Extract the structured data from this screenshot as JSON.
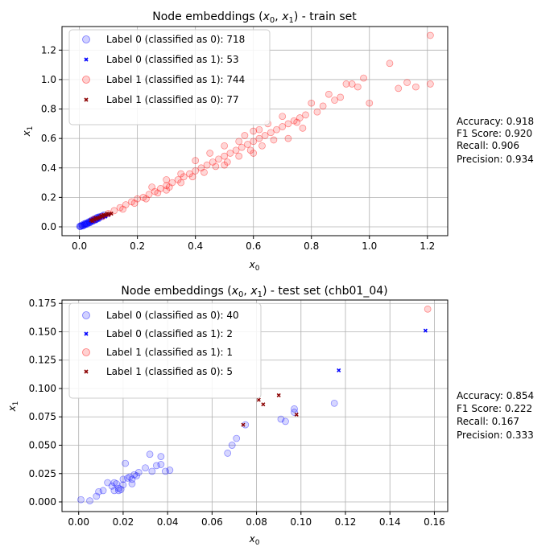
{
  "chart_data": [
    {
      "type": "scatter",
      "title": "Node embeddings (x0, x1) - train set",
      "xlabel": "x0",
      "ylabel": "x1",
      "xlim": [
        -0.06,
        1.27
      ],
      "ylim": [
        -0.06,
        1.36
      ],
      "xticks": [
        0.0,
        0.2,
        0.4,
        0.6,
        0.8,
        1.0,
        1.2
      ],
      "yticks": [
        0.0,
        0.2,
        0.4,
        0.6,
        0.8,
        1.0,
        1.2
      ],
      "xtick_labels": [
        "0.0",
        "0.2",
        "0.4",
        "0.6",
        "0.8",
        "1.0",
        "1.2"
      ],
      "ytick_labels": [
        "0.0",
        "0.2",
        "0.4",
        "0.6",
        "0.8",
        "1.0",
        "1.2"
      ],
      "grid": true,
      "legend_position": "top-left",
      "series": [
        {
          "name": "Label 0 (classified as 0): 718",
          "marker": "circle",
          "color": "#0000ff",
          "points": [
            [
              0.005,
              0.005
            ],
            [
              0.01,
              0.01
            ],
            [
              0.015,
              0.01
            ],
            [
              0.02,
              0.02
            ],
            [
              0.025,
              0.02
            ],
            [
              0.03,
              0.03
            ],
            [
              0.035,
              0.03
            ],
            [
              0.04,
              0.04
            ],
            [
              0.045,
              0.04
            ],
            [
              0.05,
              0.05
            ],
            [
              0.055,
              0.05
            ],
            [
              0.06,
              0.06
            ],
            [
              0.065,
              0.06
            ],
            [
              0.07,
              0.07
            ],
            [
              0.008,
              0.012
            ],
            [
              0.012,
              0.006
            ],
            [
              0.018,
              0.015
            ],
            [
              0.022,
              0.025
            ],
            [
              0.028,
              0.022
            ],
            [
              0.033,
              0.035
            ],
            [
              0.038,
              0.033
            ],
            [
              0.042,
              0.045
            ],
            [
              0.048,
              0.043
            ],
            [
              0.052,
              0.055
            ],
            [
              0.058,
              0.052
            ],
            [
              0.062,
              0.065
            ],
            [
              0.068,
              0.063
            ],
            [
              0.075,
              0.07
            ],
            [
              0.08,
              0.075
            ],
            [
              0.003,
              0.002
            ],
            [
              0.001,
              0.004
            ],
            [
              0.016,
              0.02
            ],
            [
              0.024,
              0.017
            ],
            [
              0.036,
              0.028
            ],
            [
              0.046,
              0.038
            ],
            [
              0.056,
              0.047
            ],
            [
              0.066,
              0.056
            ],
            [
              0.085,
              0.08
            ]
          ]
        },
        {
          "name": "Label 0 (classified as 1): 53",
          "marker": "x",
          "color": "#0000ff",
          "points": [
            [
              0.04,
              0.035
            ],
            [
              0.05,
              0.045
            ],
            [
              0.06,
              0.05
            ],
            [
              0.07,
              0.06
            ],
            [
              0.08,
              0.065
            ],
            [
              0.09,
              0.07
            ],
            [
              0.1,
              0.08
            ],
            [
              0.045,
              0.05
            ],
            [
              0.065,
              0.055
            ],
            [
              0.075,
              0.07
            ],
            [
              0.085,
              0.075
            ],
            [
              0.055,
              0.04
            ]
          ]
        },
        {
          "name": "Label 1 (classified as 1): 744",
          "marker": "circle",
          "color": "#ff0000",
          "points": [
            [
              0.05,
              0.05
            ],
            [
              0.08,
              0.07
            ],
            [
              0.1,
              0.09
            ],
            [
              0.12,
              0.11
            ],
            [
              0.14,
              0.13
            ],
            [
              0.16,
              0.15
            ],
            [
              0.18,
              0.17
            ],
            [
              0.2,
              0.19
            ],
            [
              0.22,
              0.2
            ],
            [
              0.24,
              0.22
            ],
            [
              0.26,
              0.24
            ],
            [
              0.28,
              0.26
            ],
            [
              0.3,
              0.28
            ],
            [
              0.32,
              0.3
            ],
            [
              0.34,
              0.32
            ],
            [
              0.36,
              0.34
            ],
            [
              0.38,
              0.36
            ],
            [
              0.4,
              0.38
            ],
            [
              0.42,
              0.4
            ],
            [
              0.44,
              0.42
            ],
            [
              0.46,
              0.44
            ],
            [
              0.48,
              0.46
            ],
            [
              0.5,
              0.48
            ],
            [
              0.52,
              0.5
            ],
            [
              0.54,
              0.52
            ],
            [
              0.56,
              0.54
            ],
            [
              0.58,
              0.56
            ],
            [
              0.6,
              0.58
            ],
            [
              0.62,
              0.6
            ],
            [
              0.64,
              0.62
            ],
            [
              0.66,
              0.64
            ],
            [
              0.68,
              0.66
            ],
            [
              0.7,
              0.68
            ],
            [
              0.72,
              0.7
            ],
            [
              0.74,
              0.72
            ],
            [
              0.76,
              0.74
            ],
            [
              0.78,
              0.76
            ],
            [
              0.15,
              0.12
            ],
            [
              0.19,
              0.16
            ],
            [
              0.23,
              0.19
            ],
            [
              0.27,
              0.23
            ],
            [
              0.31,
              0.27
            ],
            [
              0.35,
              0.3
            ],
            [
              0.39,
              0.34
            ],
            [
              0.43,
              0.37
            ],
            [
              0.47,
              0.41
            ],
            [
              0.51,
              0.44
            ],
            [
              0.55,
              0.48
            ],
            [
              0.59,
              0.52
            ],
            [
              0.63,
              0.55
            ],
            [
              0.67,
              0.59
            ],
            [
              0.45,
              0.5
            ],
            [
              0.5,
              0.55
            ],
            [
              0.55,
              0.58
            ],
            [
              0.6,
              0.65
            ],
            [
              0.65,
              0.7
            ],
            [
              0.7,
              0.75
            ],
            [
              0.4,
              0.45
            ],
            [
              0.35,
              0.36
            ],
            [
              0.3,
              0.32
            ],
            [
              0.25,
              0.27
            ],
            [
              0.57,
              0.62
            ],
            [
              0.62,
              0.66
            ],
            [
              0.3,
              0.25
            ],
            [
              0.5,
              0.42
            ],
            [
              0.6,
              0.5
            ],
            [
              0.82,
              0.78
            ],
            [
              0.84,
              0.82
            ],
            [
              0.86,
              0.9
            ],
            [
              0.88,
              0.86
            ],
            [
              0.9,
              0.88
            ],
            [
              0.92,
              0.97
            ],
            [
              0.94,
              0.97
            ],
            [
              0.96,
              0.95
            ],
            [
              0.98,
              1.01
            ],
            [
              1.0,
              0.84
            ],
            [
              1.07,
              1.11
            ],
            [
              1.1,
              0.94
            ],
            [
              1.13,
              0.98
            ],
            [
              1.16,
              0.95
            ],
            [
              1.21,
              0.97
            ],
            [
              1.21,
              1.3
            ],
            [
              0.8,
              0.84
            ],
            [
              0.77,
              0.67
            ],
            [
              0.72,
              0.6
            ],
            [
              0.75,
              0.71
            ]
          ]
        },
        {
          "name": "Label 1 (classified as 0): 77",
          "marker": "x",
          "color": "#8b0000",
          "points": [
            [
              0.04,
              0.045
            ],
            [
              0.05,
              0.05
            ],
            [
              0.06,
              0.055
            ],
            [
              0.07,
              0.065
            ],
            [
              0.08,
              0.07
            ],
            [
              0.09,
              0.08
            ],
            [
              0.1,
              0.085
            ],
            [
              0.11,
              0.09
            ],
            [
              0.055,
              0.06
            ],
            [
              0.065,
              0.06
            ],
            [
              0.075,
              0.075
            ],
            [
              0.085,
              0.08
            ],
            [
              0.095,
              0.09
            ],
            [
              0.045,
              0.04
            ]
          ]
        }
      ],
      "metrics": [
        "Accuracy: 0.918",
        "F1 Score: 0.920",
        "Recall: 0.906",
        "Precision: 0.934"
      ]
    },
    {
      "type": "scatter",
      "title": "Node embeddings (x0, x1) - test set (chb01_04)",
      "xlabel": "x0",
      "ylabel": "x1",
      "xlim": [
        -0.0075,
        0.166
      ],
      "ylim": [
        -0.0085,
        0.178
      ],
      "xticks": [
        0.0,
        0.02,
        0.04,
        0.06,
        0.08,
        0.1,
        0.12,
        0.14,
        0.16
      ],
      "yticks": [
        0.0,
        0.025,
        0.05,
        0.075,
        0.1,
        0.125,
        0.15,
        0.175
      ],
      "xtick_labels": [
        "0.00",
        "0.02",
        "0.04",
        "0.06",
        "0.08",
        "0.10",
        "0.12",
        "0.14",
        "0.16"
      ],
      "ytick_labels": [
        "0.000",
        "0.025",
        "0.050",
        "0.075",
        "0.100",
        "0.125",
        "0.150",
        "0.175"
      ],
      "grid": true,
      "legend_position": "top-left",
      "series": [
        {
          "name": "Label 0 (classified as 0): 40",
          "marker": "circle",
          "color": "#0000ff",
          "points": [
            [
              0.001,
              0.002
            ],
            [
              0.005,
              0.001
            ],
            [
              0.008,
              0.005
            ],
            [
              0.009,
              0.009
            ],
            [
              0.011,
              0.01
            ],
            [
              0.013,
              0.017
            ],
            [
              0.015,
              0.014
            ],
            [
              0.016,
              0.01
            ],
            [
              0.017,
              0.016
            ],
            [
              0.018,
              0.012
            ],
            [
              0.018,
              0.01
            ],
            [
              0.019,
              0.011
            ],
            [
              0.02,
              0.02
            ],
            [
              0.02,
              0.015
            ],
            [
              0.021,
              0.034
            ],
            [
              0.022,
              0.021
            ],
            [
              0.023,
              0.022
            ],
            [
              0.024,
              0.016
            ],
            [
              0.024,
              0.02
            ],
            [
              0.025,
              0.024
            ],
            [
              0.026,
              0.023
            ],
            [
              0.027,
              0.026
            ],
            [
              0.03,
              0.03
            ],
            [
              0.032,
              0.042
            ],
            [
              0.033,
              0.027
            ],
            [
              0.035,
              0.032
            ],
            [
              0.037,
              0.04
            ],
            [
              0.037,
              0.033
            ],
            [
              0.039,
              0.027
            ],
            [
              0.041,
              0.028
            ],
            [
              0.067,
              0.043
            ],
            [
              0.069,
              0.05
            ],
            [
              0.071,
              0.056
            ],
            [
              0.075,
              0.068
            ],
            [
              0.091,
              0.073
            ],
            [
              0.093,
              0.071
            ],
            [
              0.097,
              0.082
            ],
            [
              0.097,
              0.079
            ],
            [
              0.115,
              0.087
            ],
            [
              0.016,
              0.017
            ]
          ]
        },
        {
          "name": "Label 0 (classified as 1): 2",
          "marker": "x",
          "color": "#0000ff",
          "points": [
            [
              0.117,
              0.116
            ],
            [
              0.156,
              0.151
            ]
          ]
        },
        {
          "name": "Label 1 (classified as 1): 1",
          "marker": "circle",
          "color": "#ff0000",
          "points": [
            [
              0.157,
              0.17
            ]
          ]
        },
        {
          "name": "Label 1 (classified as 0): 5",
          "marker": "x",
          "color": "#8b0000",
          "points": [
            [
              0.074,
              0.068
            ],
            [
              0.081,
              0.09
            ],
            [
              0.083,
              0.086
            ],
            [
              0.09,
              0.094
            ],
            [
              0.098,
              0.077
            ]
          ]
        }
      ],
      "metrics": [
        "Accuracy: 0.854",
        "F1 Score: 0.222",
        "Recall: 0.167",
        "Precision: 0.333"
      ]
    }
  ]
}
